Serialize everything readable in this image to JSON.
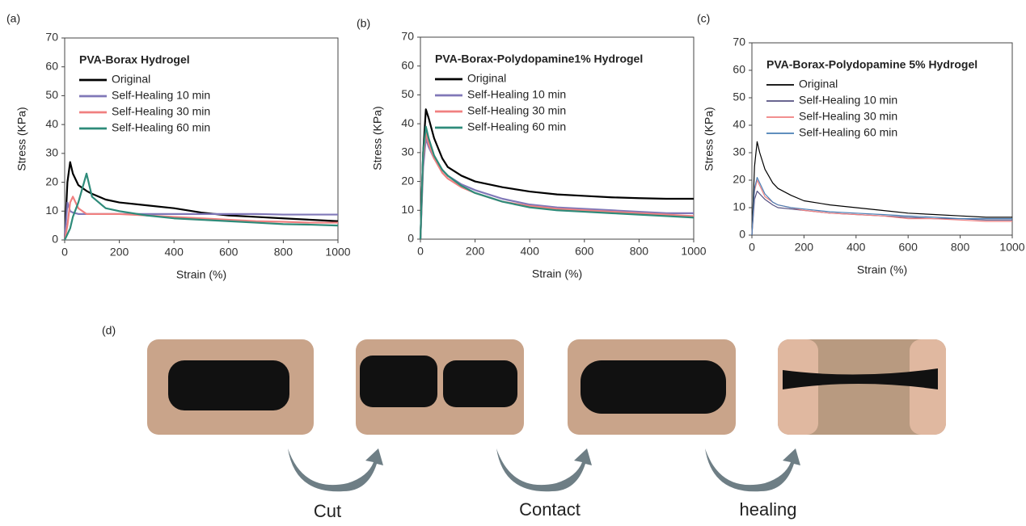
{
  "panel_labels": [
    "(a)",
    "(b)",
    "(c)",
    "(d)"
  ],
  "steps": [
    "Cut",
    "Contact",
    "healing"
  ],
  "chart_data": [
    {
      "type": "line",
      "title": "PVA-Borax Hydrogel",
      "x_label": "Strain (%)",
      "y_label": "Stress (KPa)",
      "x": [
        0,
        10,
        20,
        30,
        50,
        80,
        100,
        150,
        200,
        300,
        400,
        500,
        600,
        700,
        800,
        900,
        1000
      ],
      "xlim": [
        0,
        1000
      ],
      "xticks": [
        0,
        200,
        400,
        600,
        800,
        1000
      ],
      "ylim": [
        0,
        70
      ],
      "yticks": [
        0,
        10,
        20,
        30,
        40,
        50,
        60,
        70
      ],
      "series": [
        {
          "name": "Original",
          "color": "#000000",
          "values": [
            0,
            20,
            27,
            23,
            19,
            17,
            16,
            14,
            13,
            12,
            11,
            9.5,
            8.5,
            8,
            7.5,
            7,
            6.5
          ]
        },
        {
          "name": "Self-Healing 10 min",
          "color": "#8078b8",
          "values": [
            0,
            13,
            10,
            9.5,
            9,
            9,
            9,
            9,
            9,
            9,
            9,
            9,
            9,
            9,
            8.8,
            8.8,
            8.8
          ]
        },
        {
          "name": "Self-Healing 30 min",
          "color": "#f08080",
          "values": [
            0,
            5,
            13,
            15,
            11,
            9,
            9,
            9,
            9,
            8.5,
            8,
            7.5,
            7,
            6.5,
            6.3,
            6,
            6
          ]
        },
        {
          "name": "Self-Healing 60 min",
          "color": "#2e8b7a",
          "values": [
            0,
            2,
            4,
            8,
            13,
            23,
            15,
            11,
            10,
            8.5,
            7.5,
            7,
            6.5,
            6,
            5.5,
            5.3,
            5
          ]
        }
      ]
    },
    {
      "type": "line",
      "title": "PVA-Borax-Polydopamine1% Hydrogel",
      "x_label": "Strain (%)",
      "y_label": "Stress (KPa)",
      "x": [
        0,
        10,
        20,
        30,
        50,
        80,
        100,
        150,
        200,
        300,
        400,
        500,
        600,
        700,
        800,
        900,
        1000
      ],
      "xlim": [
        0,
        1000
      ],
      "xticks": [
        0,
        200,
        400,
        600,
        800,
        1000
      ],
      "ylim": [
        0,
        70
      ],
      "yticks": [
        0,
        10,
        20,
        30,
        40,
        50,
        60,
        70
      ],
      "series": [
        {
          "name": "Original",
          "color": "#000000",
          "values": [
            0,
            30,
            45,
            42,
            35,
            28,
            25,
            22,
            20,
            18,
            16.5,
            15.5,
            15,
            14.5,
            14.2,
            14,
            14
          ]
        },
        {
          "name": "Self-Healing 10 min",
          "color": "#8078b8",
          "values": [
            0,
            25,
            35,
            32,
            28,
            24,
            22,
            19,
            17,
            14,
            12,
            11,
            10.5,
            10,
            9.5,
            9,
            9
          ]
        },
        {
          "name": "Self-Healing 30 min",
          "color": "#f08080",
          "values": [
            0,
            28,
            37,
            33,
            28,
            23,
            21,
            18,
            16,
            13,
            11.5,
            10.5,
            10,
            9.5,
            9,
            8.5,
            8
          ]
        },
        {
          "name": "Self-Healing 60 min",
          "color": "#2e8b7a",
          "values": [
            0,
            30,
            39,
            35,
            29,
            24,
            22,
            18.5,
            16,
            13,
            11,
            10,
            9.5,
            9,
            8.5,
            8,
            7.5
          ]
        }
      ]
    },
    {
      "type": "line",
      "title": "PVA-Borax-Polydopamine 5% Hydrogel",
      "x_label": "Strain (%)",
      "y_label": "Stress (KPa)",
      "x": [
        0,
        10,
        20,
        30,
        50,
        80,
        100,
        150,
        200,
        300,
        400,
        500,
        600,
        700,
        800,
        900,
        1000
      ],
      "xlim": [
        0,
        1000
      ],
      "xticks": [
        0,
        200,
        400,
        600,
        800,
        1000
      ],
      "ylim": [
        0,
        70
      ],
      "yticks": [
        0,
        10,
        20,
        30,
        40,
        50,
        60,
        70
      ],
      "series": [
        {
          "name": "Original",
          "color": "#000000",
          "values": [
            0,
            25,
            34,
            30,
            24,
            19,
            17,
            14.5,
            12.5,
            11,
            10,
            9,
            8,
            7.5,
            7,
            6.5,
            6.5
          ]
        },
        {
          "name": "Self-Healing 10 min",
          "color": "#555080",
          "values": [
            0,
            13,
            16,
            15,
            13,
            11,
            10,
            9.5,
            9,
            8,
            7.5,
            7,
            6.5,
            6,
            6,
            5.5,
            5.5
          ]
        },
        {
          "name": "Self-Healing 30 min",
          "color": "#f08080",
          "values": [
            0,
            16,
            20,
            18,
            14,
            12,
            11,
            10,
            9,
            8,
            7.5,
            7,
            6,
            6,
            5.5,
            5,
            5
          ]
        },
        {
          "name": "Self-Healing 60 min",
          "color": "#4a7fb5",
          "values": [
            0,
            17,
            21,
            19,
            15,
            12,
            11,
            10,
            9.5,
            8.5,
            8,
            7.5,
            7,
            6.5,
            6,
            6,
            6
          ]
        }
      ]
    }
  ]
}
